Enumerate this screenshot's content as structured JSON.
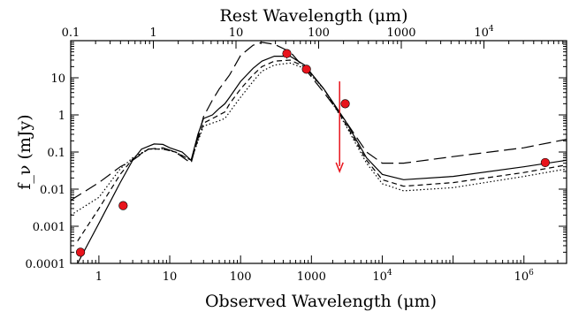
{
  "chart_data": {
    "type": "line",
    "xlabel": "Observed Wavelength (μm)",
    "x2label": "Rest Wavelength (μm)",
    "ylabel": "f_ν (mJy)",
    "xscale": "log",
    "yscale": "log",
    "xlim": [
      0.4,
      4000000
    ],
    "ylim": [
      0.0001,
      100
    ],
    "x2lim": [
      0.1,
      100000
    ],
    "bottom_ticks": [
      {
        "value": 1,
        "label": "1"
      },
      {
        "value": 10,
        "label": "10"
      },
      {
        "value": 100,
        "label": "100"
      },
      {
        "value": 1000,
        "label": "1000"
      },
      {
        "value": 10000,
        "label": "10",
        "exp": "4"
      },
      {
        "value": 1000000,
        "label": "10",
        "exp": "6"
      }
    ],
    "top_ticks": [
      {
        "value": 0.1,
        "label": "0.1"
      },
      {
        "value": 1,
        "label": "1"
      },
      {
        "value": 10,
        "label": "10"
      },
      {
        "value": 100,
        "label": "100"
      },
      {
        "value": 1000,
        "label": "1000"
      },
      {
        "value": 10000,
        "label": "10",
        "exp": "4"
      }
    ],
    "y_ticks": [
      {
        "value": 0.0001,
        "label": "0.0001"
      },
      {
        "value": 0.001,
        "label": "0.001"
      },
      {
        "value": 0.01,
        "label": "0.01"
      },
      {
        "value": 0.1,
        "label": "0.1"
      },
      {
        "value": 1,
        "label": "1"
      },
      {
        "value": 10,
        "label": "10"
      }
    ],
    "series": [
      {
        "style": "long-dash",
        "points": [
          [
            0.4,
            0.005
          ],
          [
            1,
            0.015
          ],
          [
            2,
            0.04
          ],
          [
            3,
            0.06
          ],
          [
            5,
            0.12
          ],
          [
            8,
            0.13
          ],
          [
            12,
            0.1
          ],
          [
            20,
            0.05
          ],
          [
            30,
            0.9
          ],
          [
            40,
            2.5
          ],
          [
            50,
            5
          ],
          [
            70,
            12
          ],
          [
            100,
            40
          ],
          [
            150,
            75
          ],
          [
            200,
            90
          ],
          [
            300,
            80
          ],
          [
            500,
            50
          ],
          [
            800,
            18
          ],
          [
            1500,
            4
          ],
          [
            3000,
            0.7
          ],
          [
            6000,
            0.1
          ],
          [
            10000,
            0.05
          ],
          [
            20000,
            0.05
          ],
          [
            100000,
            0.075
          ],
          [
            1000000,
            0.13
          ],
          [
            4000000,
            0.22
          ]
        ]
      },
      {
        "style": "solid",
        "points": [
          [
            0.5,
            0.0001
          ],
          [
            1,
            0.0012
          ],
          [
            2,
            0.015
          ],
          [
            3,
            0.06
          ],
          [
            4,
            0.12
          ],
          [
            6,
            0.165
          ],
          [
            8,
            0.16
          ],
          [
            10,
            0.13
          ],
          [
            15,
            0.1
          ],
          [
            20,
            0.06
          ],
          [
            25,
            0.3
          ],
          [
            30,
            0.8
          ],
          [
            40,
            1
          ],
          [
            50,
            1.5
          ],
          [
            60,
            2
          ],
          [
            70,
            3
          ],
          [
            100,
            8
          ],
          [
            150,
            18
          ],
          [
            200,
            28
          ],
          [
            300,
            38
          ],
          [
            500,
            38
          ],
          [
            800,
            22
          ],
          [
            1500,
            5
          ],
          [
            3000,
            0.7
          ],
          [
            6000,
            0.07
          ],
          [
            10000,
            0.025
          ],
          [
            20000,
            0.018
          ],
          [
            100000,
            0.022
          ],
          [
            1000000,
            0.04
          ],
          [
            4000000,
            0.06
          ]
        ]
      },
      {
        "style": "short-dash",
        "points": [
          [
            0.5,
            0.0004
          ],
          [
            1,
            0.003
          ],
          [
            2,
            0.025
          ],
          [
            3,
            0.065
          ],
          [
            5,
            0.12
          ],
          [
            8,
            0.12
          ],
          [
            12,
            0.1
          ],
          [
            20,
            0.06
          ],
          [
            30,
            0.6
          ],
          [
            40,
            0.8
          ],
          [
            50,
            1
          ],
          [
            60,
            1.2
          ],
          [
            70,
            2
          ],
          [
            100,
            5
          ],
          [
            150,
            12
          ],
          [
            200,
            20
          ],
          [
            300,
            28
          ],
          [
            500,
            30
          ],
          [
            800,
            20
          ],
          [
            1500,
            5
          ],
          [
            3000,
            0.6
          ],
          [
            6000,
            0.06
          ],
          [
            10000,
            0.018
          ],
          [
            20000,
            0.012
          ],
          [
            100000,
            0.015
          ],
          [
            1000000,
            0.028
          ],
          [
            4000000,
            0.045
          ]
        ]
      },
      {
        "style": "dotted",
        "points": [
          [
            0.4,
            0.002
          ],
          [
            1,
            0.006
          ],
          [
            2,
            0.035
          ],
          [
            3,
            0.07
          ],
          [
            5,
            0.12
          ],
          [
            8,
            0.12
          ],
          [
            12,
            0.1
          ],
          [
            20,
            0.06
          ],
          [
            30,
            0.5
          ],
          [
            40,
            0.6
          ],
          [
            50,
            0.7
          ],
          [
            60,
            0.8
          ],
          [
            70,
            1.2
          ],
          [
            100,
            3
          ],
          [
            150,
            8
          ],
          [
            200,
            15
          ],
          [
            300,
            22
          ],
          [
            500,
            25
          ],
          [
            800,
            18
          ],
          [
            1500,
            5
          ],
          [
            3000,
            0.55
          ],
          [
            6000,
            0.05
          ],
          [
            10000,
            0.014
          ],
          [
            20000,
            0.009
          ],
          [
            100000,
            0.011
          ],
          [
            1000000,
            0.022
          ],
          [
            4000000,
            0.035
          ]
        ]
      }
    ],
    "data_points": [
      {
        "x": 0.55,
        "y": 0.0002,
        "err_lo": 4e-05,
        "err_hi": 4e-05
      },
      {
        "x": 2.2,
        "y": 0.0036,
        "err_lo": 0.0007,
        "err_hi": 0.0007
      },
      {
        "x": 450,
        "y": 45,
        "err_lo": 12,
        "err_hi": 12
      },
      {
        "x": 850,
        "y": 17,
        "err_lo": 3,
        "err_hi": 3
      },
      {
        "x": 3000,
        "y": 2
      },
      {
        "x": 2000000,
        "y": 0.052,
        "err_lo": 0.008,
        "err_hi": 0.008
      }
    ],
    "upper_limit": {
      "x": 2500,
      "y_top": 8,
      "y_bottom": 0.03
    },
    "colors": {
      "points": "#e8141c",
      "limit": "#e8141c",
      "curves": "#000000"
    },
    "grid": false
  }
}
